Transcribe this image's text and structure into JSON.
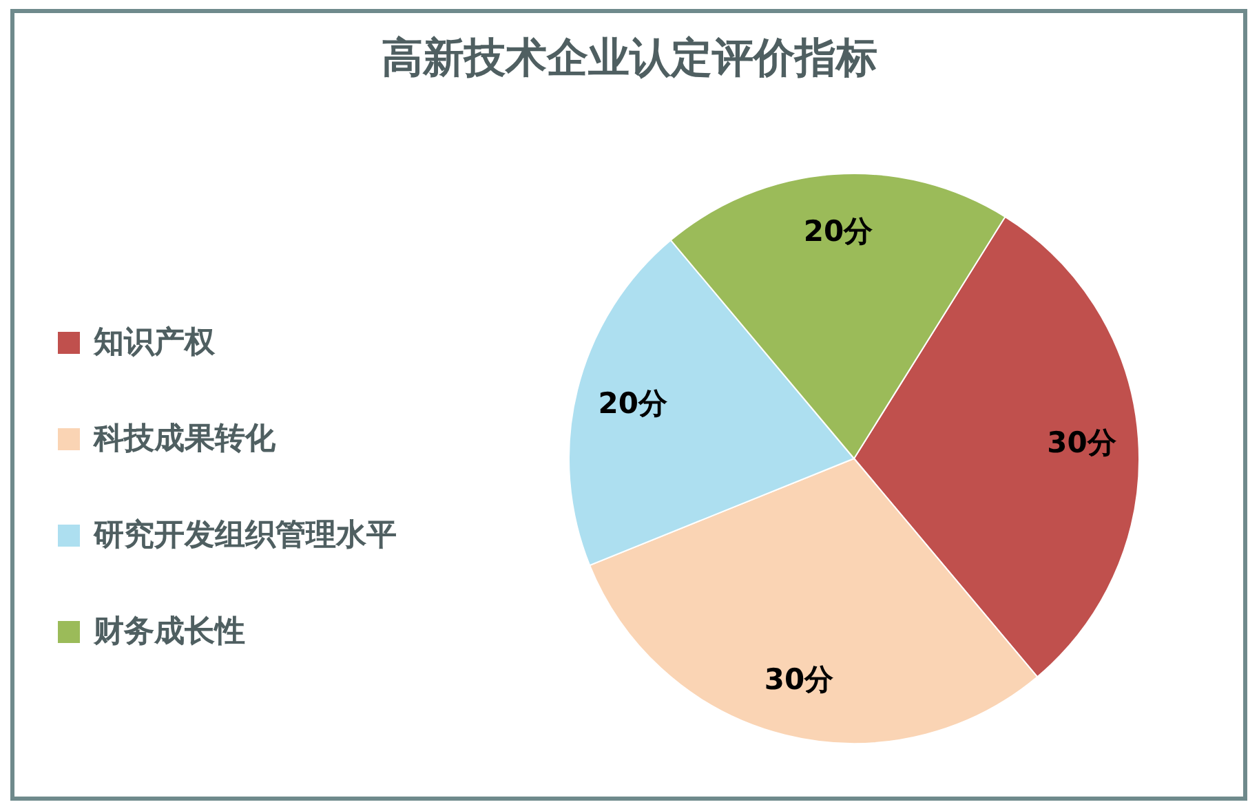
{
  "chart_data": {
    "type": "pie",
    "title": "高新技术企业认定评价指标",
    "categories": [
      "知识产权",
      "科技成果转化",
      "研究开发组织管理水平",
      "财务成长性"
    ],
    "values": [
      30,
      30,
      20,
      20
    ],
    "value_labels": [
      "30分",
      "30分",
      "20分",
      "20分"
    ],
    "colors": [
      "#c0504d",
      "#fad4b4",
      "#addff0",
      "#9bbb59"
    ],
    "legend": "left"
  }
}
